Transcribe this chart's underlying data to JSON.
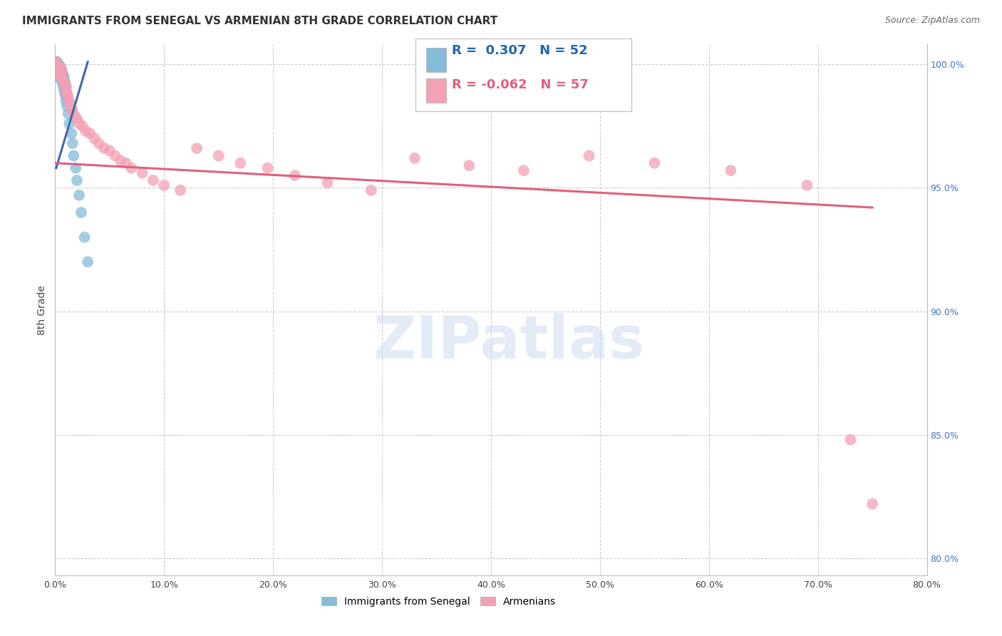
{
  "title": "IMMIGRANTS FROM SENEGAL VS ARMENIAN 8TH GRADE CORRELATION CHART",
  "source": "Source: ZipAtlas.com",
  "ylabel": "8th Grade",
  "xlim": [
    0.0,
    0.8
  ],
  "ylim": [
    0.793,
    1.008
  ],
  "x_ticks": [
    0.0,
    0.1,
    0.2,
    0.3,
    0.4,
    0.5,
    0.6,
    0.7,
    0.8
  ],
  "x_tick_labels": [
    "0.0%",
    "10.0%",
    "20.0%",
    "30.0%",
    "40.0%",
    "50.0%",
    "60.0%",
    "70.0%",
    "80.0%"
  ],
  "y_ticks": [
    1.0,
    0.95,
    0.9,
    0.85,
    0.8
  ],
  "y_tick_labels_right": [
    "100.0%",
    "95.0%",
    "90.0%",
    "85.0%",
    "80.0%"
  ],
  "blue_color": "#85bcdb",
  "pink_color": "#f4a0b5",
  "blue_line_color": "#3a6ab0",
  "pink_line_color": "#e0607e",
  "watermark_text": "ZIPatlas",
  "legend_r_blue": " 0.307",
  "legend_n_blue": "52",
  "legend_r_pink": "-0.062",
  "legend_n_pink": "57",
  "blue_scatter_x": [
    0.001,
    0.001,
    0.002,
    0.002,
    0.002,
    0.003,
    0.003,
    0.003,
    0.003,
    0.003,
    0.004,
    0.004,
    0.004,
    0.004,
    0.005,
    0.005,
    0.005,
    0.005,
    0.005,
    0.005,
    0.006,
    0.006,
    0.006,
    0.006,
    0.007,
    0.007,
    0.007,
    0.007,
    0.008,
    0.008,
    0.008,
    0.008,
    0.009,
    0.009,
    0.009,
    0.009,
    0.01,
    0.01,
    0.01,
    0.01,
    0.011,
    0.012,
    0.013,
    0.015,
    0.016,
    0.017,
    0.019,
    0.02,
    0.022,
    0.024,
    0.027,
    0.03
  ],
  "blue_scatter_y": [
    1.0,
    0.998,
    1.001,
    0.999,
    0.997,
    1.0,
    0.999,
    0.998,
    0.997,
    0.996,
    0.999,
    0.998,
    0.997,
    0.995,
    0.999,
    0.998,
    0.997,
    0.996,
    0.995,
    0.994,
    0.997,
    0.996,
    0.995,
    0.994,
    0.996,
    0.995,
    0.994,
    0.992,
    0.995,
    0.994,
    0.992,
    0.99,
    0.993,
    0.991,
    0.989,
    0.988,
    0.991,
    0.989,
    0.987,
    0.985,
    0.983,
    0.98,
    0.976,
    0.972,
    0.968,
    0.963,
    0.958,
    0.953,
    0.947,
    0.94,
    0.93,
    0.92
  ],
  "pink_scatter_x": [
    0.001,
    0.001,
    0.002,
    0.002,
    0.003,
    0.003,
    0.004,
    0.004,
    0.005,
    0.005,
    0.006,
    0.006,
    0.007,
    0.008,
    0.009,
    0.01,
    0.01,
    0.011,
    0.012,
    0.013,
    0.014,
    0.015,
    0.016,
    0.018,
    0.02,
    0.022,
    0.025,
    0.028,
    0.032,
    0.036,
    0.04,
    0.045,
    0.05,
    0.055,
    0.06,
    0.065,
    0.07,
    0.08,
    0.09,
    0.1,
    0.115,
    0.13,
    0.15,
    0.17,
    0.195,
    0.22,
    0.25,
    0.29,
    0.33,
    0.38,
    0.43,
    0.49,
    0.55,
    0.62,
    0.69,
    0.73,
    0.75
  ],
  "pink_scatter_y": [
    1.001,
    0.999,
    1.0,
    0.998,
    0.999,
    0.997,
    0.998,
    0.996,
    0.997,
    0.995,
    0.998,
    0.996,
    0.994,
    0.993,
    0.992,
    0.991,
    0.989,
    0.988,
    0.987,
    0.985,
    0.984,
    0.982,
    0.981,
    0.979,
    0.978,
    0.976,
    0.975,
    0.973,
    0.972,
    0.97,
    0.968,
    0.966,
    0.965,
    0.963,
    0.961,
    0.96,
    0.958,
    0.956,
    0.953,
    0.951,
    0.949,
    0.966,
    0.963,
    0.96,
    0.958,
    0.955,
    0.952,
    0.949,
    0.962,
    0.959,
    0.957,
    0.963,
    0.96,
    0.957,
    0.951,
    0.848,
    0.822
  ],
  "pink_line_x0": 0.0,
  "pink_line_x1": 0.75,
  "pink_line_y0": 0.96,
  "pink_line_y1": 0.942,
  "blue_line_x0": 0.001,
  "blue_line_x1": 0.03,
  "blue_line_y0": 0.958,
  "blue_line_y1": 1.001
}
